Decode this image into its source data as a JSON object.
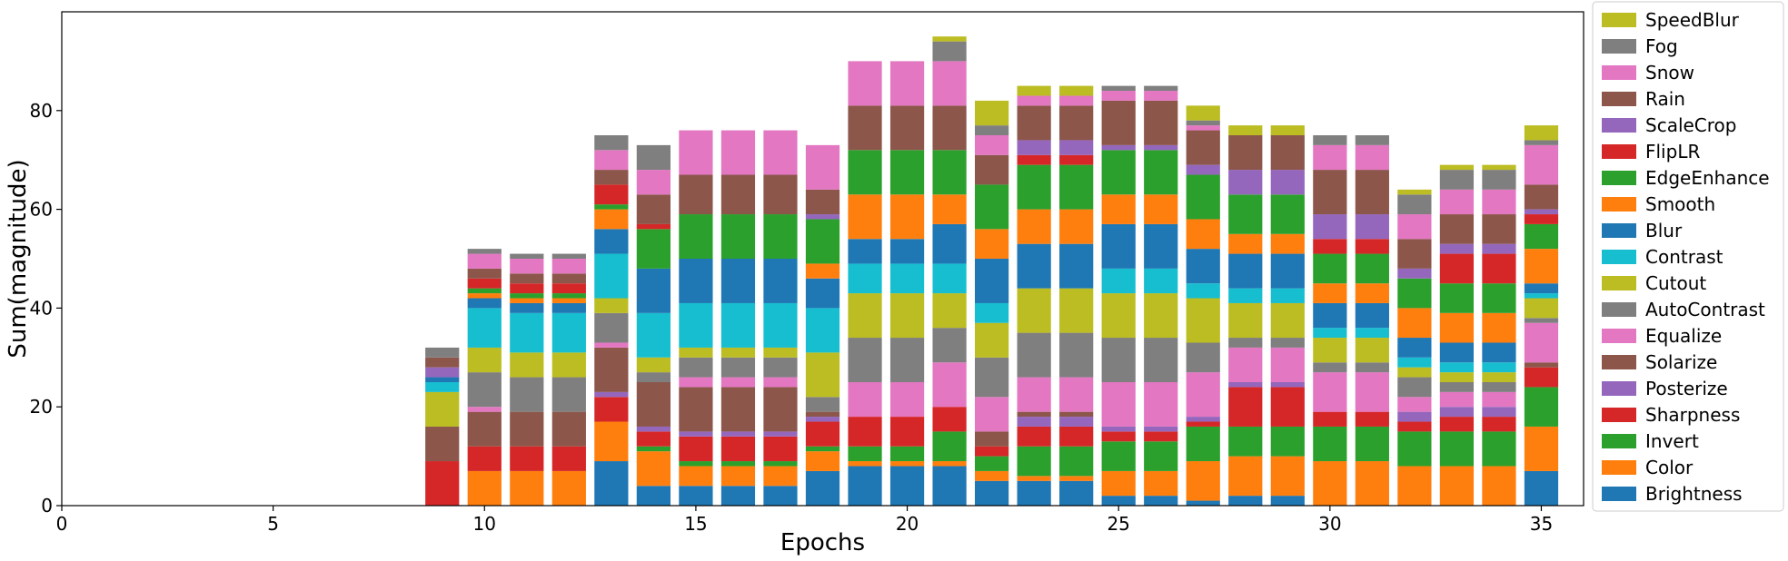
{
  "chart_data": {
    "type": "bar",
    "stacked": true,
    "xlabel": "Epochs",
    "ylabel": "Sum(magnitude)",
    "xlim": [
      0,
      36
    ],
    "ylim": [
      0,
      100
    ],
    "xticks": [
      "0",
      "5",
      "10",
      "15",
      "20",
      "25",
      "30",
      "35"
    ],
    "yticks": [
      "0",
      "20",
      "40",
      "60",
      "80"
    ],
    "grid": false,
    "legend_position": "outside-right",
    "x": [
      9,
      10,
      11,
      12,
      13,
      14,
      15,
      16,
      17,
      18,
      19,
      20,
      21,
      22,
      23,
      24,
      25,
      26,
      27,
      28,
      29,
      30,
      31,
      32,
      33,
      34,
      35
    ],
    "series": [
      {
        "name": "Brightness",
        "color": "#1f77b4",
        "values": [
          0,
          0,
          0,
          0,
          9,
          4,
          4,
          4,
          4,
          7,
          8,
          8,
          8,
          5,
          5,
          5,
          2,
          2,
          1,
          2,
          2,
          0,
          0,
          0,
          0,
          0,
          7
        ]
      },
      {
        "name": "Color",
        "color": "#ff7f0e",
        "values": [
          0,
          7,
          7,
          7,
          8,
          7,
          4,
          4,
          4,
          4,
          1,
          1,
          1,
          2,
          1,
          1,
          5,
          5,
          8,
          8,
          8,
          9,
          9,
          8,
          8,
          8,
          9
        ]
      },
      {
        "name": "Invert",
        "color": "#2ca02c",
        "values": [
          0,
          0,
          0,
          0,
          0,
          1,
          1,
          1,
          1,
          1,
          3,
          3,
          6,
          3,
          6,
          6,
          6,
          6,
          7,
          6,
          6,
          7,
          7,
          7,
          7,
          7,
          8
        ]
      },
      {
        "name": "Sharpness",
        "color": "#d62728",
        "values": [
          9,
          5,
          5,
          5,
          5,
          3,
          5,
          5,
          5,
          5,
          6,
          6,
          5,
          2,
          4,
          4,
          2,
          2,
          1,
          8,
          8,
          3,
          3,
          2,
          3,
          3,
          4
        ]
      },
      {
        "name": "Posterize",
        "color": "#9467bd",
        "values": [
          0,
          0,
          0,
          0,
          1,
          1,
          1,
          1,
          1,
          1,
          0,
          0,
          0,
          0,
          2,
          2,
          1,
          1,
          1,
          1,
          1,
          0,
          0,
          2,
          2,
          2,
          0
        ]
      },
      {
        "name": "Solarize",
        "color": "#8c564b",
        "values": [
          7,
          7,
          7,
          7,
          9,
          9,
          9,
          9,
          9,
          1,
          0,
          0,
          0,
          3,
          1,
          1,
          0,
          0,
          0,
          0,
          0,
          0,
          0,
          0,
          0,
          0,
          1
        ]
      },
      {
        "name": "Equalize",
        "color": "#e377c2",
        "values": [
          0,
          1,
          0,
          0,
          1,
          0,
          2,
          2,
          2,
          0,
          7,
          7,
          9,
          7,
          7,
          7,
          9,
          9,
          9,
          7,
          7,
          8,
          8,
          3,
          3,
          3,
          8
        ]
      },
      {
        "name": "AutoContrast",
        "color": "#7f7f7f",
        "values": [
          0,
          7,
          7,
          7,
          6,
          2,
          4,
          4,
          4,
          3,
          9,
          9,
          7,
          8,
          9,
          9,
          9,
          9,
          6,
          2,
          2,
          2,
          2,
          4,
          2,
          2,
          1
        ]
      },
      {
        "name": "Cutout",
        "color": "#bcbd22",
        "values": [
          7,
          5,
          5,
          5,
          3,
          3,
          2,
          2,
          2,
          9,
          9,
          9,
          7,
          7,
          9,
          9,
          9,
          9,
          9,
          7,
          7,
          5,
          5,
          2,
          2,
          2,
          4
        ]
      },
      {
        "name": "Contrast",
        "color": "#17becf",
        "values": [
          2,
          8,
          8,
          8,
          9,
          9,
          9,
          9,
          9,
          9,
          6,
          6,
          6,
          4,
          0,
          0,
          5,
          5,
          3,
          3,
          3,
          2,
          2,
          2,
          2,
          2,
          1
        ]
      },
      {
        "name": "Blur",
        "color": "#1f77b4",
        "values": [
          1,
          2,
          2,
          2,
          5,
          9,
          9,
          9,
          9,
          6,
          5,
          5,
          8,
          9,
          9,
          9,
          9,
          9,
          7,
          7,
          7,
          5,
          5,
          4,
          4,
          4,
          2
        ]
      },
      {
        "name": "Smooth",
        "color": "#ff7f0e",
        "values": [
          0,
          1,
          1,
          1,
          4,
          0,
          0,
          0,
          0,
          3,
          9,
          9,
          6,
          6,
          7,
          7,
          6,
          6,
          6,
          4,
          4,
          4,
          4,
          6,
          6,
          6,
          7
        ]
      },
      {
        "name": "EdgeEnhance",
        "color": "#2ca02c",
        "values": [
          0,
          1,
          1,
          1,
          1,
          8,
          9,
          9,
          9,
          9,
          9,
          9,
          9,
          9,
          9,
          9,
          9,
          9,
          9,
          8,
          8,
          6,
          6,
          6,
          6,
          6,
          5
        ]
      },
      {
        "name": "FlipLR",
        "color": "#d62728",
        "values": [
          0,
          2,
          2,
          2,
          4,
          1,
          0,
          0,
          0,
          0,
          0,
          0,
          0,
          0,
          2,
          2,
          0,
          0,
          0,
          0,
          0,
          3,
          3,
          0,
          6,
          6,
          2
        ]
      },
      {
        "name": "ScaleCrop",
        "color": "#9467bd",
        "values": [
          2,
          0,
          0,
          0,
          0,
          0,
          0,
          0,
          0,
          1,
          0,
          0,
          0,
          0,
          3,
          3,
          1,
          1,
          2,
          5,
          5,
          5,
          5,
          2,
          2,
          2,
          1
        ]
      },
      {
        "name": "Rain",
        "color": "#8c564b",
        "values": [
          2,
          2,
          2,
          2,
          3,
          6,
          8,
          8,
          8,
          5,
          9,
          9,
          9,
          6,
          7,
          7,
          9,
          9,
          7,
          7,
          7,
          9,
          9,
          6,
          6,
          6,
          5
        ]
      },
      {
        "name": "Snow",
        "color": "#e377c2",
        "values": [
          0,
          3,
          3,
          3,
          4,
          5,
          9,
          9,
          9,
          9,
          9,
          9,
          9,
          4,
          2,
          2,
          2,
          2,
          1,
          0,
          0,
          5,
          5,
          5,
          5,
          5,
          8
        ]
      },
      {
        "name": "Fog",
        "color": "#7f7f7f",
        "values": [
          2,
          1,
          1,
          1,
          3,
          5,
          0,
          0,
          0,
          0,
          0,
          0,
          4,
          2,
          0,
          0,
          1,
          1,
          1,
          0,
          0,
          2,
          2,
          4,
          4,
          4,
          1
        ]
      },
      {
        "name": "SpeedBlur",
        "color": "#bcbd22",
        "values": [
          0,
          0,
          0,
          0,
          0,
          0,
          0,
          0,
          0,
          0,
          0,
          0,
          1,
          5,
          2,
          2,
          0,
          0,
          3,
          2,
          2,
          0,
          0,
          1,
          1,
          1,
          3
        ]
      }
    ]
  }
}
